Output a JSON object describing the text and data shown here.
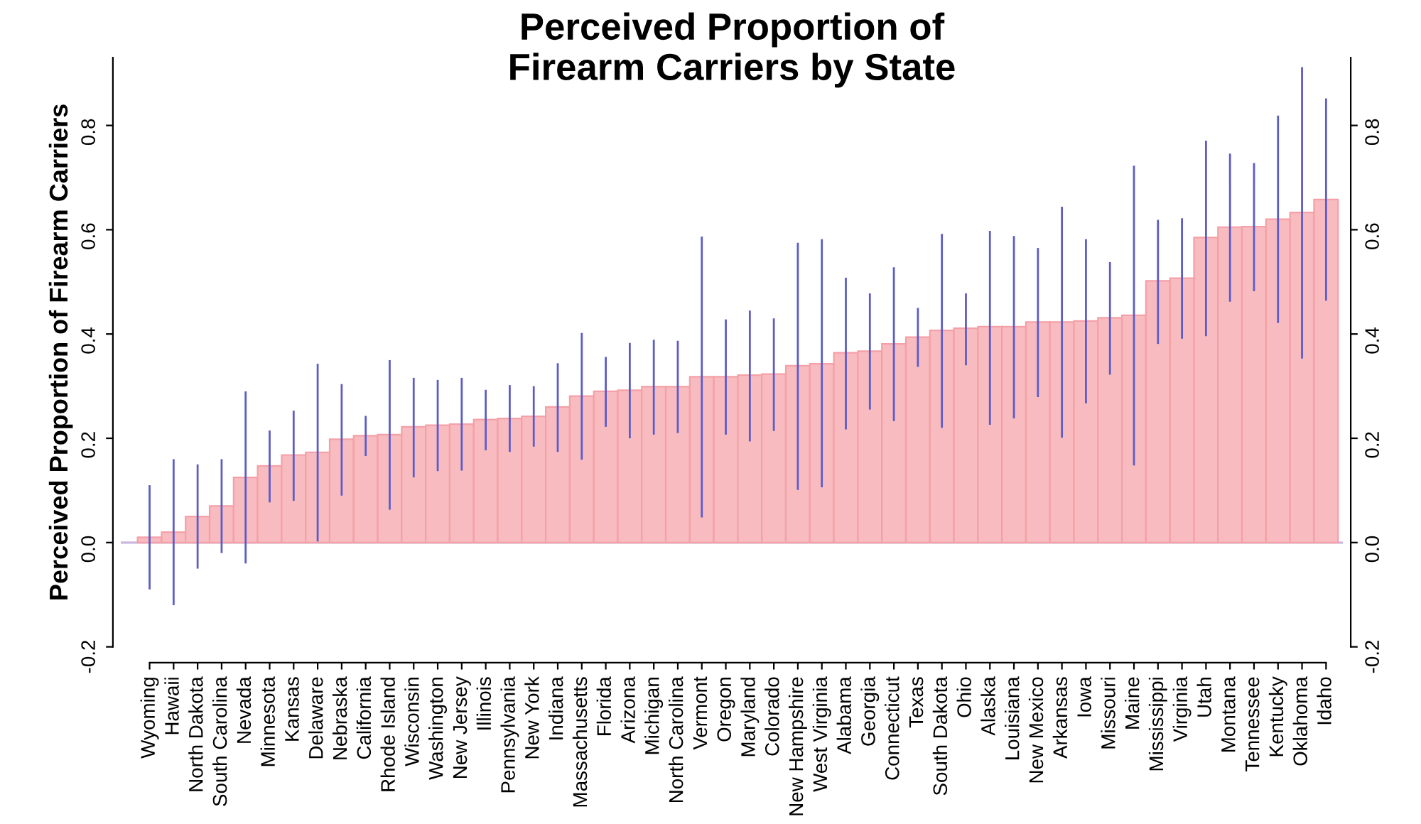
{
  "chart_data": {
    "type": "bar",
    "title": "Perceived Proportion of\nFirearm Carriers by State",
    "ylabel": "Perceived Proportion of Firearm Carriers",
    "categories": [
      "Wyoming",
      "Hawaii",
      "North Dakota",
      "South Carolina",
      "Nevada",
      "Minnesota",
      "Kansas",
      "Delaware",
      "Nebraska",
      "California",
      "Rhode Island",
      "Wisconsin",
      "Washington",
      "New Jersey",
      "Illinois",
      "Pennsylvania",
      "New York",
      "Indiana",
      "Massachusetts",
      "Florida",
      "Arizona",
      "Michigan",
      "North Carolina",
      "Vermont",
      "Oregon",
      "Maryland",
      "Colorado",
      "New Hampshire",
      "West Virginia",
      "Alabama",
      "Georgia",
      "Connecticut",
      "Texas",
      "South Dakota",
      "Ohio",
      "Alaska",
      "Louisiana",
      "New Mexico",
      "Arkansas",
      "Iowa",
      "Missouri",
      "Maine",
      "Mississippi",
      "Virginia",
      "Utah",
      "Montana",
      "Tennessee",
      "Kentucky",
      "Oklahoma",
      "Idaho"
    ],
    "values": [
      0.01,
      0.02,
      0.05,
      0.07,
      0.125,
      0.147,
      0.168,
      0.173,
      0.198,
      0.205,
      0.207,
      0.222,
      0.225,
      0.227,
      0.236,
      0.238,
      0.242,
      0.26,
      0.281,
      0.29,
      0.292,
      0.299,
      0.299,
      0.318,
      0.318,
      0.321,
      0.323,
      0.339,
      0.343,
      0.364,
      0.367,
      0.381,
      0.394,
      0.407,
      0.411,
      0.414,
      0.414,
      0.423,
      0.423,
      0.425,
      0.431,
      0.436,
      0.502,
      0.507,
      0.585,
      0.605,
      0.606,
      0.62,
      0.633,
      0.658
    ],
    "errors": [
      [
        -0.09,
        0.11
      ],
      [
        -0.12,
        0.16
      ],
      [
        -0.05,
        0.15
      ],
      [
        -0.02,
        0.16
      ],
      [
        -0.04,
        0.29
      ],
      [
        0.077,
        0.215
      ],
      [
        0.08,
        0.253
      ],
      [
        0.002,
        0.343
      ],
      [
        0.09,
        0.304
      ],
      [
        0.166,
        0.243
      ],
      [
        0.063,
        0.35
      ],
      [
        0.125,
        0.316
      ],
      [
        0.137,
        0.312
      ],
      [
        0.138,
        0.316
      ],
      [
        0.177,
        0.293
      ],
      [
        0.174,
        0.302
      ],
      [
        0.184,
        0.3
      ],
      [
        0.174,
        0.344
      ],
      [
        0.159,
        0.402
      ],
      [
        0.222,
        0.356
      ],
      [
        0.2,
        0.383
      ],
      [
        0.207,
        0.389
      ],
      [
        0.21,
        0.387
      ],
      [
        0.048,
        0.587
      ],
      [
        0.207,
        0.428
      ],
      [
        0.194,
        0.445
      ],
      [
        0.214,
        0.43
      ],
      [
        0.101,
        0.575
      ],
      [
        0.106,
        0.582
      ],
      [
        0.217,
        0.508
      ],
      [
        0.255,
        0.478
      ],
      [
        0.233,
        0.528
      ],
      [
        0.337,
        0.45
      ],
      [
        0.22,
        0.592
      ],
      [
        0.34,
        0.478
      ],
      [
        0.226,
        0.598
      ],
      [
        0.238,
        0.588
      ],
      [
        0.279,
        0.565
      ],
      [
        0.201,
        0.644
      ],
      [
        0.267,
        0.582
      ],
      [
        0.322,
        0.538
      ],
      [
        0.148,
        0.723
      ],
      [
        0.381,
        0.619
      ],
      [
        0.391,
        0.622
      ],
      [
        0.396,
        0.771
      ],
      [
        0.462,
        0.746
      ],
      [
        0.482,
        0.728
      ],
      [
        0.421,
        0.819
      ],
      [
        0.353,
        0.912
      ],
      [
        0.464,
        0.852
      ]
    ],
    "color": "#f8bcc0",
    "ylim": [
      -0.2,
      0.93
    ],
    "yticks": [
      -0.2,
      {
        "value": 0,
        "label": "0.0"
      },
      0.2,
      0.4,
      0.6,
      0.8
    ],
    "y2lim": [
      -0.2,
      0.93
    ],
    "y2ticks": [
      -0.2,
      {
        "value": 0,
        "label": "0.0"
      },
      0.2,
      0.4,
      0.6,
      0.8
    ],
    "ref_lines": [
      {
        "axis": "y",
        "value": 0,
        "color": "#c8b8e0"
      }
    ],
    "grid": false,
    "legend": false
  }
}
